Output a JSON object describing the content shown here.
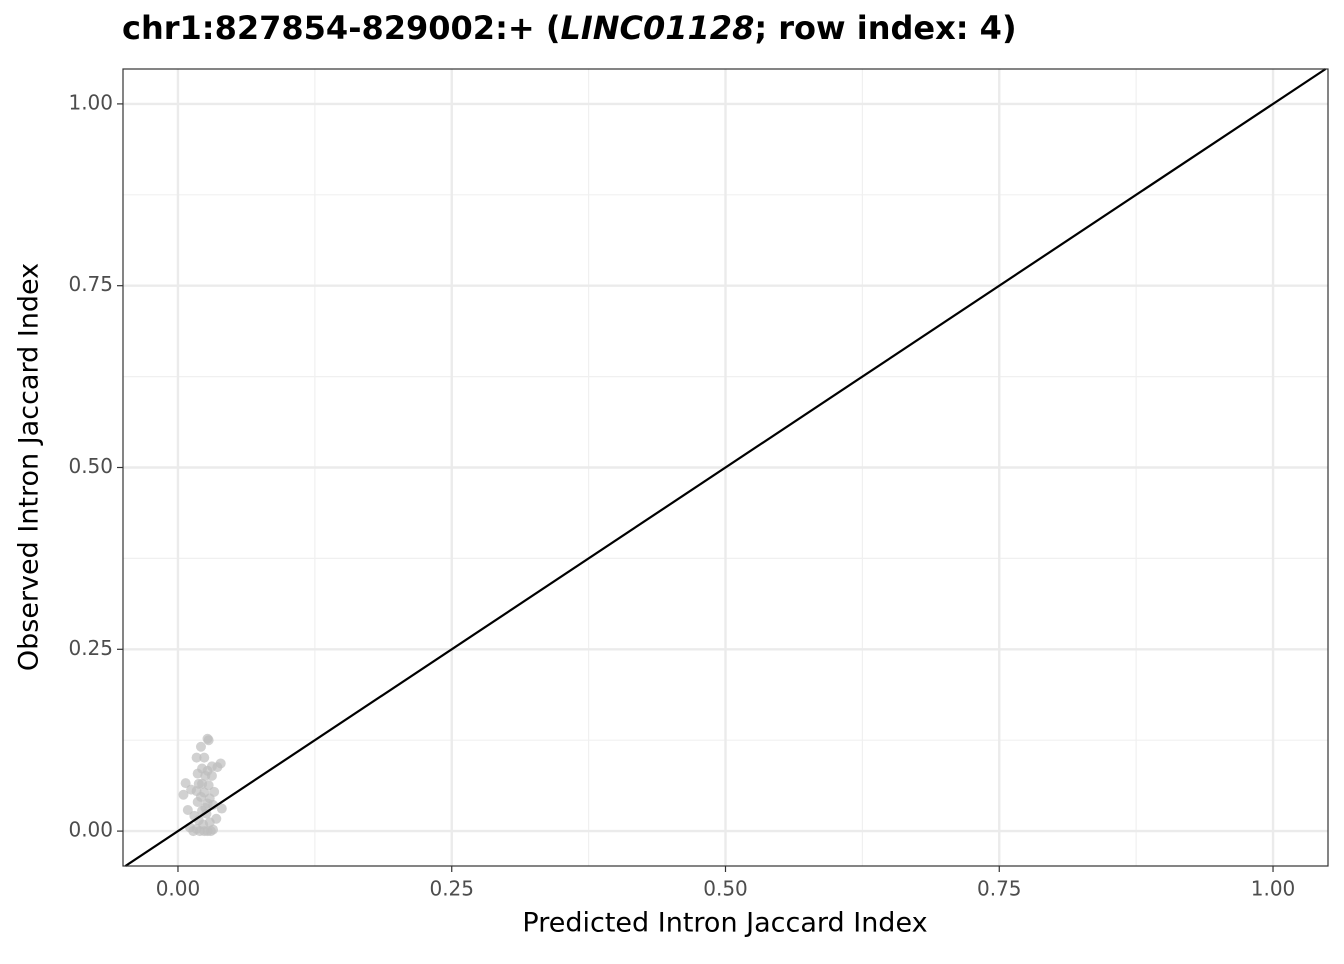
{
  "chart_data": {
    "type": "scatter",
    "title": [
      "chr1:827854-829002:+ (",
      "LINC01128",
      "; row index: 4)"
    ],
    "x_label": "Predicted  Intron Jaccard Index",
    "y_label": "Observed  Intron Jaccard Index",
    "xlim": [
      -0.0502,
      1.0502
    ],
    "ylim": [
      -0.048,
      1.048
    ],
    "xticks": [
      {
        "value": 0,
        "label": "0.00"
      },
      {
        "value": 0.25,
        "label": "0.25"
      },
      {
        "value": 0.5,
        "label": "0.50"
      },
      {
        "value": 0.75,
        "label": "0.75"
      },
      {
        "value": 1,
        "label": "1.00"
      }
    ],
    "yticks": [
      {
        "value": 0,
        "label": "0.00"
      },
      {
        "value": 0.25,
        "label": "0.25"
      },
      {
        "value": 0.5,
        "label": "0.50"
      },
      {
        "value": 0.75,
        "label": "0.75"
      },
      {
        "value": 1,
        "label": "1.00"
      }
    ],
    "x_minor_ticks": [
      0.125,
      0.375,
      0.625,
      0.875
    ],
    "y_minor_ticks": [
      0.125,
      0.375,
      0.625,
      0.875
    ],
    "grid": true,
    "identity_line": true,
    "color": "#bdbdbd",
    "x": [
      0.027,
      0.028,
      0.021,
      0.024,
      0.017,
      0.039,
      0.031,
      0.036,
      0.022,
      0.027,
      0.018,
      0.025,
      0.031,
      0.007,
      0.019,
      0.028,
      0.012,
      0.017,
      0.024,
      0.033,
      0.005,
      0.021,
      0.029,
      0.018,
      0.027,
      0.032,
      0.04,
      0.009,
      0.022,
      0.026,
      0.015,
      0.035,
      0.019,
      0.029,
      0.023,
      0.011,
      0.017,
      0.02,
      0.024,
      0.027,
      0.03,
      0.014,
      0.032,
      0.022,
      0.025
    ],
    "values": [
      0.127,
      0.125,
      0.116,
      0.101,
      0.101,
      0.093,
      0.089,
      0.088,
      0.086,
      0.083,
      0.079,
      0.076,
      0.076,
      0.066,
      0.065,
      0.063,
      0.057,
      0.055,
      0.053,
      0.054,
      0.05,
      0.047,
      0.045,
      0.04,
      0.038,
      0.036,
      0.031,
      0.029,
      0.028,
      0.024,
      0.021,
      0.017,
      0.015,
      0.012,
      0.009,
      0.005,
      0.003,
      0,
      0,
      0,
      0,
      0,
      0.002,
      0.065,
      0.032
    ]
  }
}
